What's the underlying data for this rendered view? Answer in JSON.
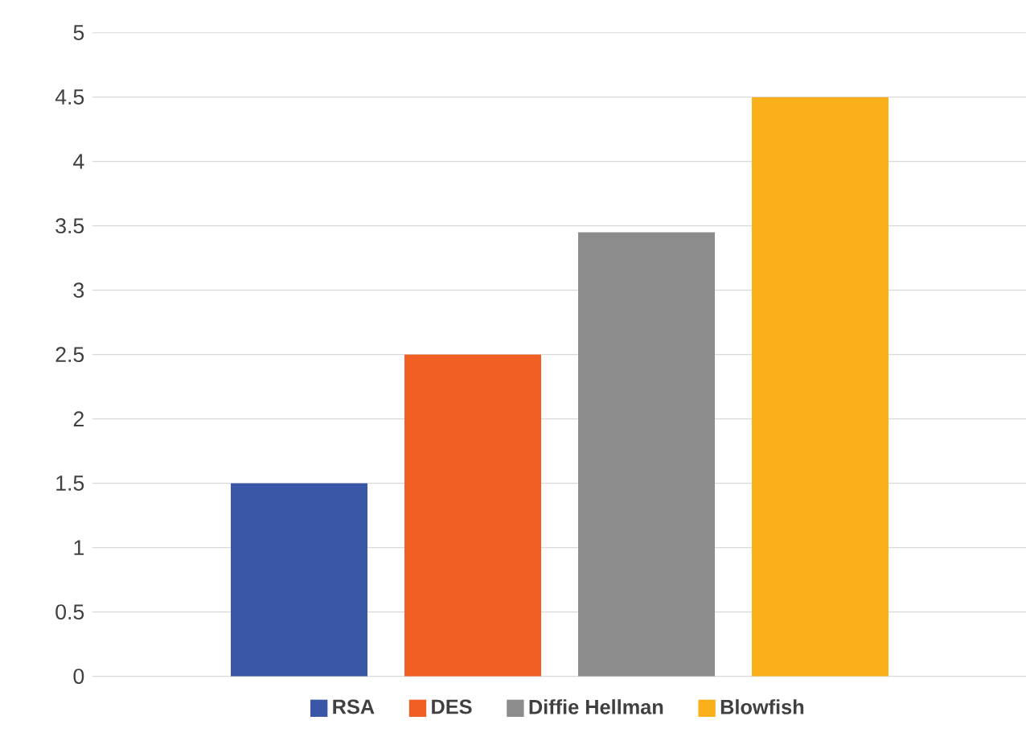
{
  "chart_data": {
    "type": "bar",
    "categories": [
      null
    ],
    "series": [
      {
        "name": "RSA",
        "color": "#3a56a6",
        "values": [
          1.5
        ]
      },
      {
        "name": "DES",
        "color": "#f15f24",
        "values": [
          2.5
        ]
      },
      {
        "name": "Diffie Hellman",
        "color": "#8c8c8c",
        "values": [
          3.45
        ]
      },
      {
        "name": "Blowfish",
        "color": "#f9b01a",
        "values": [
          4.5
        ]
      }
    ],
    "ylim": [
      0,
      5
    ],
    "yticks": [
      0,
      0.5,
      1,
      1.5,
      2,
      2.5,
      3,
      3.5,
      4,
      4.5,
      5
    ],
    "grid": "y",
    "legend": "bottom"
  }
}
